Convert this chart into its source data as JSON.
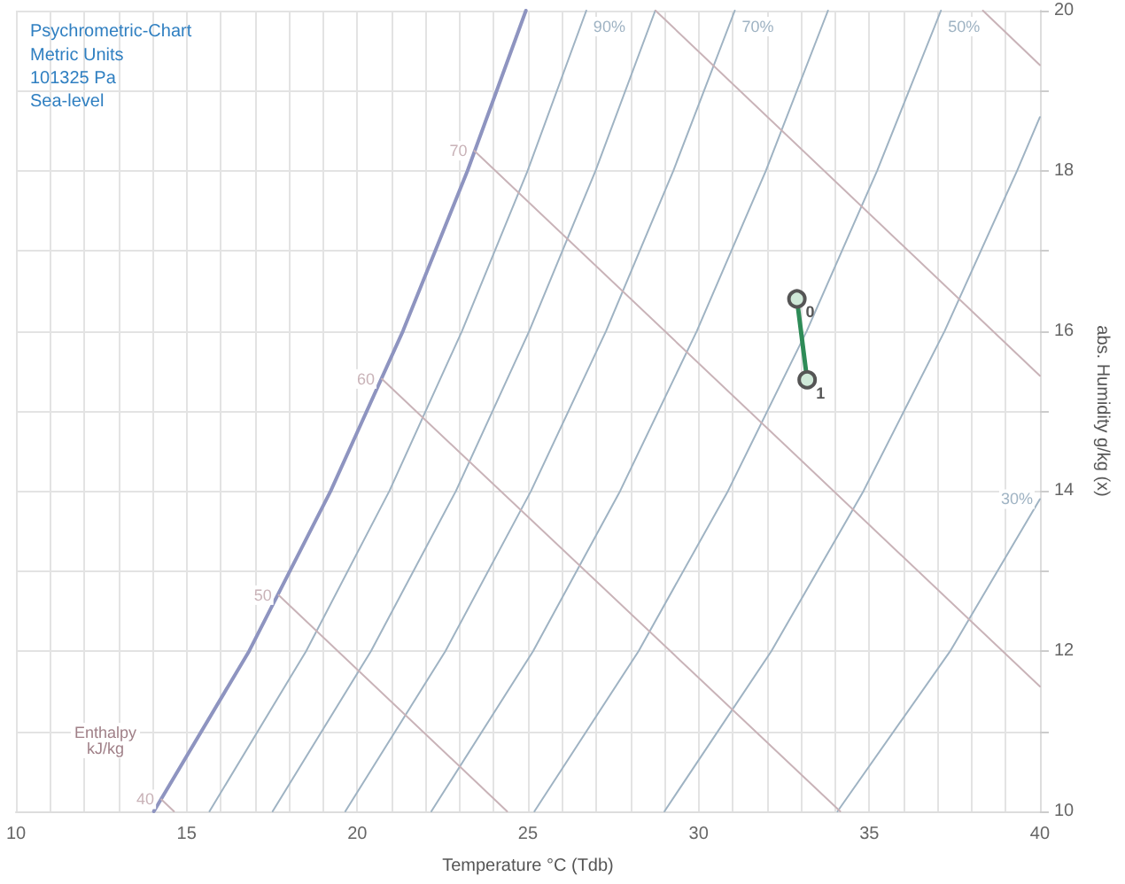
{
  "chart_data": {
    "type": "line",
    "title": "Psychrometric-Chart",
    "subtitle": "Metric Units\n101325 Pa\nSea-level",
    "xlabel": "Temperature °C (Tdb)",
    "ylabel": "abs. Humidity g/kg (x)",
    "annotations": [
      "Enthalpy\nkJ/kg",
      {
        "text": "0",
        "x": 32.88,
        "y": 16.4
      },
      {
        "text": "1",
        "x": 33.18,
        "y": 15.39
      }
    ],
    "xlim": [
      10,
      40
    ],
    "ylim": [
      10,
      20
    ],
    "xticks": [
      10,
      {
        "value": 11,
        "label": null
      },
      {
        "value": 12,
        "label": null
      },
      {
        "value": 13,
        "label": null
      },
      {
        "value": 14,
        "label": null
      },
      15,
      {
        "value": 16,
        "label": null
      },
      {
        "value": 17,
        "label": null
      },
      {
        "value": 18,
        "label": null
      },
      {
        "value": 19,
        "label": null
      },
      20,
      {
        "value": 21,
        "label": null
      },
      {
        "value": 22,
        "label": null
      },
      {
        "value": 23,
        "label": null
      },
      {
        "value": 24,
        "label": null
      },
      25,
      {
        "value": 26,
        "label": null
      },
      {
        "value": 27,
        "label": null
      },
      {
        "value": 28,
        "label": null
      },
      {
        "value": 29,
        "label": null
      },
      30,
      {
        "value": 31,
        "label": null
      },
      {
        "value": 32,
        "label": null
      },
      {
        "value": 33,
        "label": null
      },
      {
        "value": 34,
        "label": null
      },
      35,
      {
        "value": 36,
        "label": null
      },
      {
        "value": 37,
        "label": null
      },
      {
        "value": 38,
        "label": null
      },
      {
        "value": 39,
        "label": null
      },
      40
    ],
    "yticks": [
      10,
      {
        "value": 11,
        "label": null
      },
      12,
      {
        "value": 13,
        "label": null
      },
      14,
      {
        "value": 15,
        "label": null
      },
      16,
      {
        "value": 17,
        "label": null
      },
      18,
      {
        "value": 19,
        "label": null
      },
      20
    ],
    "grid": true,
    "legend": false,
    "marker": "none",
    "line_style": "solid",
    "series": [
      {
        "color": "#8e94c0",
        "x": [
          24.94,
          23.23,
          21.34,
          19.22,
          16.83,
          14.04
        ],
        "values": [
          20,
          18,
          16,
          14,
          12,
          10
        ]
      },
      {
        "name": "90%",
        "color": "#9fb3c3",
        "x": [
          26.71,
          24.99,
          23.07,
          20.94,
          18.5,
          15.67
        ],
        "values": [
          20,
          18,
          16,
          14,
          12,
          10
        ]
      },
      {
        "color": "#9fb3c3",
        "x": [
          28.73,
          26.98,
          25.04,
          22.89,
          20.4,
          17.52
        ],
        "values": [
          20,
          18,
          16,
          14,
          12,
          10
        ]
      },
      {
        "name": "70%",
        "color": "#9fb3c3",
        "x": [
          31.06,
          29.26,
          27.29,
          25.09,
          22.58,
          19.65
        ],
        "values": [
          20,
          18,
          16,
          14,
          12,
          10
        ]
      },
      {
        "color": "#9fb3c3",
        "x": [
          33.79,
          31.97,
          29.95,
          27.7,
          25.15,
          22.17
        ],
        "values": [
          20,
          18,
          16,
          14,
          12,
          10
        ]
      },
      {
        "name": "50%",
        "color": "#9fb3c3",
        "x": [
          37.1,
          35.23,
          33.17,
          30.86,
          28.24,
          25.19
        ],
        "values": [
          20,
          18,
          16,
          14,
          12,
          10
        ]
      },
      {
        "color": "#9fb3c3",
        "x": [
          40,
          39.33,
          37.21,
          34.83,
          32.13,
          29.0
        ],
        "values": [
          18.67,
          18,
          16,
          14,
          12,
          10
        ]
      },
      {
        "name": "30%",
        "color": "#9fb3c3",
        "x": [
          40,
          37.37,
          34.07
        ],
        "values": [
          13.9,
          12,
          10
        ]
      },
      {
        "name": "40",
        "color": "#c9b3b8",
        "x": [
          14.26,
          14.63
        ],
        "values": [
          10.15,
          10
        ]
      },
      {
        "name": "50",
        "color": "#c9b3b8",
        "x": [
          17.7,
          24.39
        ],
        "values": [
          12.7,
          10
        ]
      },
      {
        "name": "60",
        "color": "#c9b3b8",
        "x": [
          20.72,
          34.15
        ],
        "values": [
          15.4,
          10
        ]
      },
      {
        "name": "70",
        "color": "#c9b3b8",
        "x": [
          23.43,
          40
        ],
        "values": [
          18.25,
          11.56
        ]
      },
      {
        "color": "#c9b3b8",
        "x": [
          28.74,
          40
        ],
        "values": [
          20,
          15.44
        ]
      },
      {
        "color": "#c9b3b8",
        "x": [
          38.33,
          40
        ],
        "values": [
          20,
          19.32
        ]
      },
      {
        "color": "#2e8b57",
        "marker": "circle",
        "x": [
          32.88,
          33.18
        ],
        "values": [
          16.4,
          15.39
        ]
      }
    ]
  }
}
